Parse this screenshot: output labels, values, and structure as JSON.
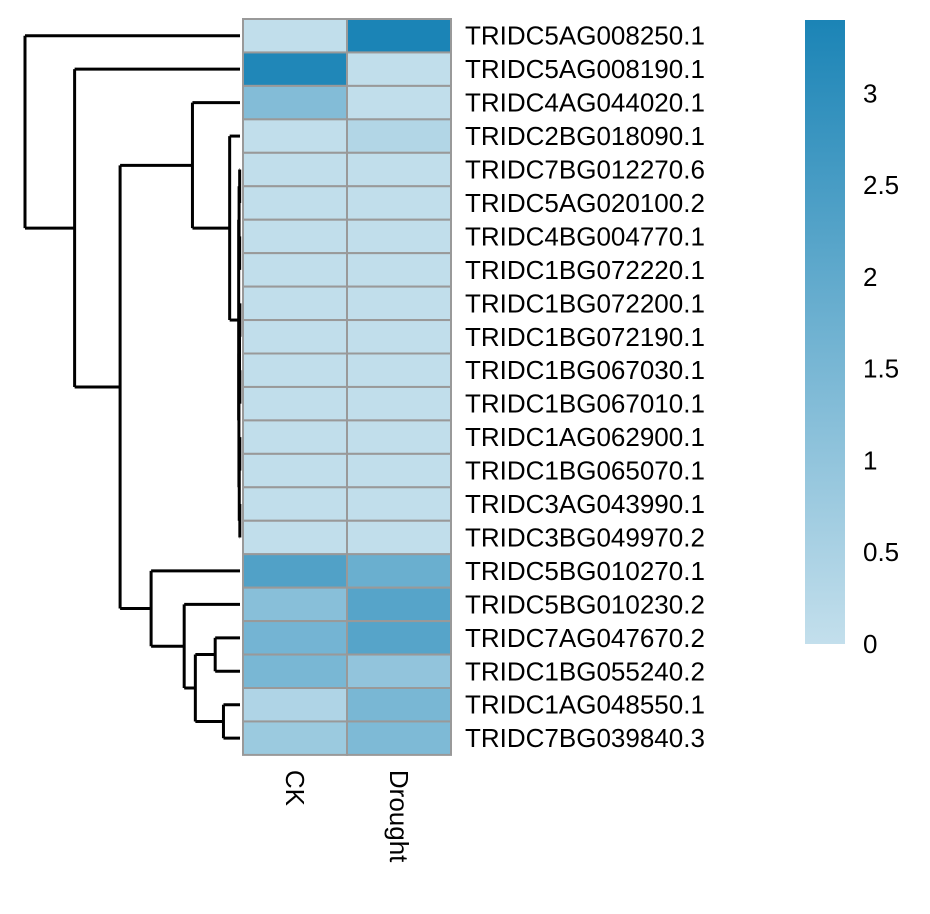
{
  "chart_data": {
    "type": "heatmap",
    "title": "",
    "columns": [
      "CK",
      "Drought"
    ],
    "rows": [
      "TRIDC5AG008250.1",
      "TRIDC5AG008190.1",
      "TRIDC4AG044020.1",
      "TRIDC2BG018090.1",
      "TRIDC7BG012270.6",
      "TRIDC5AG020100.2",
      "TRIDC4BG004770.1",
      "TRIDC1BG072220.1",
      "TRIDC1BG072200.1",
      "TRIDC1BG072190.1",
      "TRIDC1BG067030.1",
      "TRIDC1BG067010.1",
      "TRIDC1AG062900.1",
      "TRIDC1BG065070.1",
      "TRIDC3AG043990.1",
      "TRIDC3BG049970.2",
      "TRIDC5BG010270.1",
      "TRIDC5BG010230.2",
      "TRIDC7AG047670.2",
      "TRIDC1BG055240.2",
      "TRIDC1AG048550.1",
      "TRIDC7BG039840.3"
    ],
    "values": [
      [
        0.05,
        3.4
      ],
      [
        3.3,
        0.05
      ],
      [
        1.3,
        0.05
      ],
      [
        0.05,
        0.35
      ],
      [
        0.05,
        0.05
      ],
      [
        0.05,
        0.05
      ],
      [
        0.05,
        0.05
      ],
      [
        0.05,
        0.05
      ],
      [
        0.05,
        0.05
      ],
      [
        0.05,
        0.05
      ],
      [
        0.05,
        0.05
      ],
      [
        0.05,
        0.05
      ],
      [
        0.05,
        0.05
      ],
      [
        0.05,
        0.05
      ],
      [
        0.05,
        0.05
      ],
      [
        0.05,
        0.05
      ],
      [
        2.3,
        1.8
      ],
      [
        1.2,
        2.2
      ],
      [
        1.6,
        2.2
      ],
      [
        1.5,
        1.0
      ],
      [
        0.4,
        1.5
      ],
      [
        0.8,
        1.4
      ]
    ],
    "color_scale": {
      "min": 0,
      "max": 3.4,
      "low_color": "#c3dfec",
      "high_color": "#1b84b6"
    },
    "legend": {
      "ticks": [
        0,
        0.5,
        1,
        1.5,
        2,
        2.5,
        3
      ],
      "tick_labels": [
        "0",
        "0.5",
        "1",
        "1.5",
        "2",
        "2.5",
        "3"
      ],
      "placement": "right"
    },
    "row_dendrogram": {
      "merges": [
        {
          "a": 10,
          "b": 11,
          "height": 0.003
        },
        {
          "a": 8,
          "b": 9,
          "height": 0.003
        },
        {
          "a": 12,
          "b": 13,
          "height": 0.004
        },
        {
          "a": 14,
          "b": 15,
          "height": 0.004
        },
        {
          "a": 4,
          "b": 5,
          "height": 0.008
        },
        {
          "a": 6,
          "b": 7,
          "height": 0.008
        },
        {
          "a": 23,
          "b": 22,
          "height": 0.012
        },
        {
          "a": 24,
          "b": 25,
          "height": 0.018
        },
        {
          "a": 26,
          "b": 27,
          "height": 0.022
        },
        {
          "a": 28,
          "b": 29,
          "height": 0.026
        },
        {
          "a": 30,
          "b": 31,
          "height": 0.032
        },
        {
          "a": 3,
          "b": 32,
          "height": 0.25
        },
        {
          "a": 2,
          "b": 33,
          "height": 1.15
        },
        {
          "a": 18,
          "b": 19,
          "height": 0.6
        },
        {
          "a": 20,
          "b": 21,
          "height": 0.4
        },
        {
          "a": 35,
          "b": 36,
          "height": 1.08
        },
        {
          "a": 17,
          "b": 37,
          "height": 1.35
        },
        {
          "a": 16,
          "b": 38,
          "height": 2.15
        },
        {
          "a": 34,
          "b": 39,
          "height": 2.9
        },
        {
          "a": 1,
          "b": 40,
          "height": 4.0
        },
        {
          "a": 0,
          "b": 41,
          "height": 5.2
        }
      ]
    }
  }
}
